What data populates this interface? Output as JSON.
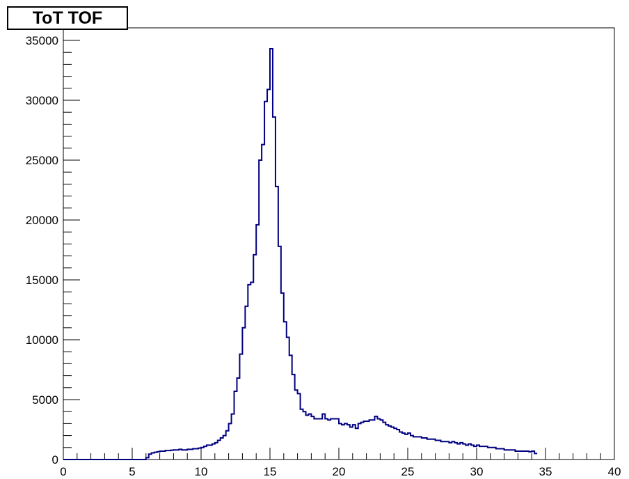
{
  "chart_data": {
    "type": "histogram",
    "title": "ToT TOF",
    "xlabel": "",
    "ylabel": "",
    "xlim": [
      0,
      40
    ],
    "ylim": [
      0,
      35000
    ],
    "x_ticks": [
      "0",
      "5",
      "10",
      "15",
      "20",
      "25",
      "30",
      "35",
      "40"
    ],
    "y_ticks": [
      "0",
      "5000",
      "10000",
      "15000",
      "20000",
      "25000",
      "30000",
      "35000"
    ],
    "grid": false,
    "line_color": "#000080",
    "bin_width": 0.2,
    "bin_edges_start": 6.0,
    "counts": [
      150,
      450,
      550,
      600,
      650,
      700,
      700,
      750,
      750,
      780,
      800,
      800,
      850,
      800,
      800,
      850,
      850,
      900,
      900,
      950,
      1000,
      1100,
      1200,
      1200,
      1300,
      1400,
      1600,
      1800,
      2000,
      2400,
      3000,
      3800,
      5700,
      6800,
      8800,
      11000,
      12800,
      14600,
      14800,
      17100,
      19600,
      25000,
      26300,
      29900,
      30900,
      34300,
      28600,
      22800,
      17800,
      13900,
      11500,
      10200,
      8700,
      7100,
      5800,
      5500,
      4200,
      4000,
      3700,
      3800,
      3600,
      3400,
      3400,
      3400,
      3800,
      3400,
      3300,
      3400,
      3400,
      3400,
      3000,
      2900,
      3000,
      2900,
      2700,
      2900,
      2600,
      3000,
      3100,
      3200,
      3200,
      3300,
      3300,
      3600,
      3400,
      3300,
      3100,
      2900,
      2800,
      2700,
      2600,
      2500,
      2300,
      2200,
      2100,
      2200,
      2000,
      1900,
      1900,
      1900,
      1800,
      1800,
      1700,
      1700,
      1700,
      1600,
      1600,
      1500,
      1500,
      1500,
      1400,
      1500,
      1400,
      1300,
      1400,
      1300,
      1200,
      1300,
      1200,
      1100,
      1200,
      1100,
      1100,
      1100,
      1000,
      1000,
      1000,
      900,
      900,
      900,
      800,
      800,
      800,
      800,
      700,
      700,
      700,
      700,
      700,
      650,
      700,
      500
    ]
  }
}
